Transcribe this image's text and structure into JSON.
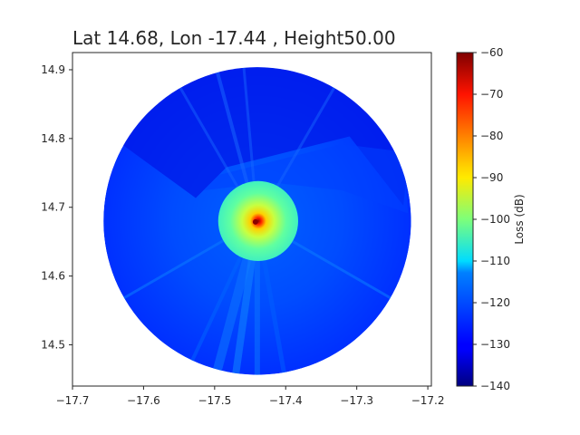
{
  "chart_data": {
    "type": "heatmap",
    "title": "Lat 14.68, Lon -17.44 , Height50.00",
    "xlabel": "",
    "ylabel": "",
    "xlim": [
      -17.7,
      -17.195
    ],
    "ylim": [
      14.44,
      14.925
    ],
    "x_ticks": [
      -17.7,
      -17.6,
      -17.5,
      -17.4,
      -17.3,
      -17.2
    ],
    "x_tick_labels": [
      "−17.7",
      "−17.6",
      "−17.5",
      "−17.4",
      "−17.3",
      "−17.2"
    ],
    "y_ticks": [
      14.5,
      14.6,
      14.7,
      14.8,
      14.9
    ],
    "y_tick_labels": [
      "14.5",
      "14.6",
      "14.7",
      "14.8",
      "14.9"
    ],
    "grid": false,
    "transmitter": {
      "lon": -17.44,
      "lat": 14.68
    },
    "coverage_radius_deg": 0.22,
    "colormap": "jet",
    "colorbar": {
      "label": "Loss (dB)",
      "vmin": -140,
      "vmax": -60,
      "ticks": [
        -60,
        -70,
        -80,
        -90,
        -100,
        -110,
        -120,
        -130,
        -140
      ],
      "tick_labels": [
        "−60",
        "−70",
        "−80",
        "−90",
        "−100",
        "−110",
        "−120",
        "−130",
        "−140"
      ]
    }
  }
}
